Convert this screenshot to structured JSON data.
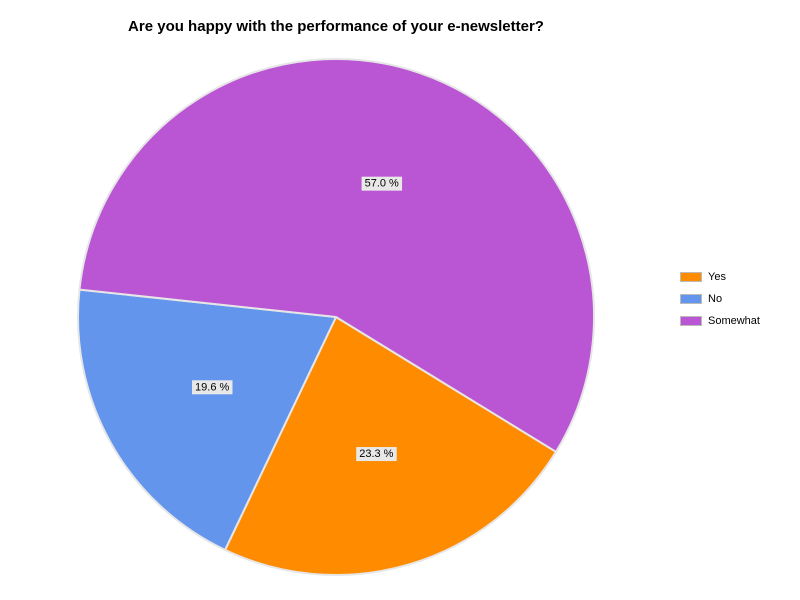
{
  "chart_data": {
    "type": "pie",
    "title": "Are you happy with the performance of your e-newsletter?",
    "categories": [
      "Yes",
      "No",
      "Somewhat"
    ],
    "values": [
      23.3,
      19.6,
      57.0
    ],
    "data_labels": [
      "23.3 %",
      "19.6 %",
      "57.0 %"
    ],
    "colors": [
      "#FF8C00",
      "#6495ED",
      "#BA55D3"
    ],
    "legend_position": "right"
  }
}
